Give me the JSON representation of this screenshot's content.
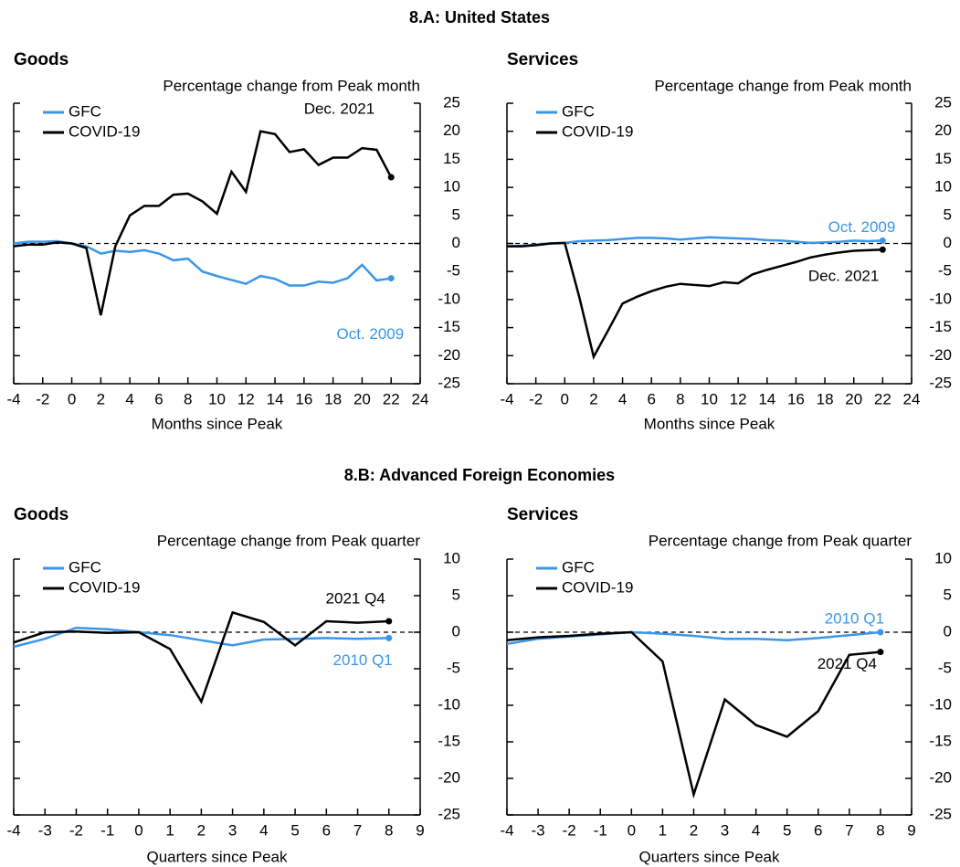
{
  "sections": [
    "8.A: United States",
    "8.B: Advanced Foreign Economies"
  ],
  "chart_data": [
    {
      "type": "line",
      "title": "Goods",
      "subtitle": "Percentage change from Peak month",
      "x_label": "Months since Peak",
      "x": [
        -4,
        -3,
        -2,
        -1,
        0,
        1,
        2,
        3,
        4,
        5,
        6,
        7,
        8,
        9,
        10,
        11,
        12,
        13,
        14,
        15,
        16,
        17,
        18,
        19,
        20,
        21,
        22
      ],
      "xlim": [
        -4,
        24
      ],
      "xticks": [
        -4,
        -2,
        0,
        2,
        4,
        6,
        8,
        10,
        12,
        14,
        16,
        18,
        20,
        22,
        24
      ],
      "ylim": [
        -25,
        25
      ],
      "yticks": [
        25,
        20,
        15,
        10,
        5,
        0,
        -5,
        -10,
        -15,
        -20,
        -25
      ],
      "series": [
        {
          "name": "GFC",
          "color": "#3a96e8",
          "end_label": "Oct. 2009",
          "values": [
            0,
            0.3,
            0.3,
            0.4,
            0,
            -0.5,
            -1.8,
            -1.3,
            -1.5,
            -1.2,
            -1.8,
            -3,
            -2.7,
            -5,
            -5.8,
            -6.5,
            -7.2,
            -5.8,
            -6.3,
            -7.5,
            -7.5,
            -6.8,
            -7,
            -6.2,
            -3.8,
            -6.6,
            -6.2
          ]
        },
        {
          "name": "COVID-19",
          "color": "#000000",
          "end_label": "Dec. 2021",
          "values": [
            -0.5,
            -0.2,
            -0.2,
            0.2,
            0,
            -0.8,
            -12.8,
            -0.5,
            5,
            6.7,
            6.7,
            8.7,
            8.9,
            7.5,
            5.3,
            12.8,
            9.2,
            20,
            19.5,
            16.3,
            16.8,
            14,
            15.3,
            15.3,
            17,
            16.7,
            11.8
          ]
        }
      ]
    },
    {
      "type": "line",
      "title": "Services",
      "subtitle": "Percentage change from Peak month",
      "x_label": "Months since Peak",
      "x": [
        -4,
        -3,
        -2,
        -1,
        0,
        1,
        2,
        3,
        4,
        5,
        6,
        7,
        8,
        9,
        10,
        11,
        12,
        13,
        14,
        15,
        16,
        17,
        18,
        19,
        20,
        21,
        22
      ],
      "xlim": [
        -4,
        24
      ],
      "xticks": [
        -4,
        -2,
        0,
        2,
        4,
        6,
        8,
        10,
        12,
        14,
        16,
        18,
        20,
        22,
        24
      ],
      "ylim": [
        -25,
        25
      ],
      "yticks": [
        25,
        20,
        15,
        10,
        5,
        0,
        -5,
        -10,
        -15,
        -20,
        -25
      ],
      "series": [
        {
          "name": "GFC",
          "color": "#3a96e8",
          "end_label": "Oct. 2009",
          "values": [
            -0.5,
            -0.4,
            -0.2,
            0,
            0.1,
            0.4,
            0.5,
            0.6,
            0.8,
            1,
            1,
            0.9,
            0.7,
            0.9,
            1.1,
            1,
            0.9,
            0.8,
            0.6,
            0.5,
            0.3,
            0.1,
            0.2,
            0.3,
            0.5,
            0.4,
            0.5
          ]
        },
        {
          "name": "COVID-19",
          "color": "#000000",
          "end_label": "Dec. 2021",
          "values": [
            -0.5,
            -0.5,
            -0.3,
            0,
            0.1,
            -9.5,
            -20.2,
            -15.5,
            -10.7,
            -9.5,
            -8.5,
            -7.7,
            -7.2,
            -7.4,
            -7.6,
            -6.9,
            -7.1,
            -5.5,
            -4.7,
            -4,
            -3.3,
            -2.5,
            -2,
            -1.6,
            -1.3,
            -1.2,
            -1.1
          ]
        }
      ]
    },
    {
      "type": "line",
      "title": "Goods",
      "subtitle": "Percentage change from Peak quarter",
      "x_label": "Quarters since Peak",
      "x": [
        -4,
        -3,
        -2,
        -1,
        0,
        1,
        2,
        3,
        4,
        5,
        6,
        7,
        8
      ],
      "xlim": [
        -4,
        9
      ],
      "xticks": [
        -4,
        -3,
        -2,
        -1,
        0,
        1,
        2,
        3,
        4,
        5,
        6,
        7,
        8,
        9
      ],
      "ylim": [
        -25,
        10
      ],
      "yticks": [
        10,
        5,
        0,
        -5,
        -10,
        -15,
        -20,
        -25
      ],
      "series": [
        {
          "name": "GFC",
          "color": "#3a96e8",
          "end_label": "2010 Q1",
          "values": [
            -2,
            -0.9,
            0.6,
            0.4,
            0,
            -0.4,
            -1.1,
            -1.8,
            -1,
            -0.9,
            -0.8,
            -0.9,
            -0.8
          ]
        },
        {
          "name": "COVID-19",
          "color": "#000000",
          "end_label": "2021 Q4",
          "values": [
            -1.4,
            0,
            0.1,
            -0.1,
            0,
            -2.3,
            -9.5,
            2.7,
            1.4,
            -1.8,
            1.5,
            1.3,
            1.5
          ]
        }
      ]
    },
    {
      "type": "line",
      "title": "Services",
      "subtitle": "Percentage change from Peak quarter",
      "x_label": "Quarters since Peak",
      "x": [
        -4,
        -3,
        -2,
        -1,
        0,
        1,
        2,
        3,
        4,
        5,
        6,
        7,
        8
      ],
      "xlim": [
        -4,
        9
      ],
      "xticks": [
        -4,
        -3,
        -2,
        -1,
        0,
        1,
        2,
        3,
        4,
        5,
        6,
        7,
        8,
        9
      ],
      "ylim": [
        -25,
        10
      ],
      "yticks": [
        10,
        5,
        0,
        -5,
        -10,
        -15,
        -20,
        -25
      ],
      "series": [
        {
          "name": "GFC",
          "color": "#3a96e8",
          "end_label": "2010 Q1",
          "values": [
            -1.6,
            -0.9,
            -0.6,
            -0.3,
            0,
            -0.2,
            -0.5,
            -0.9,
            -0.9,
            -1.1,
            -0.8,
            -0.4,
            0
          ]
        },
        {
          "name": "COVID-19",
          "color": "#000000",
          "end_label": "2021 Q4",
          "values": [
            -1.1,
            -0.7,
            -0.5,
            -0.2,
            0,
            -4,
            -22.2,
            -9.2,
            -12.7,
            -14.3,
            -10.8,
            -3.1,
            -2.7
          ]
        }
      ]
    }
  ]
}
